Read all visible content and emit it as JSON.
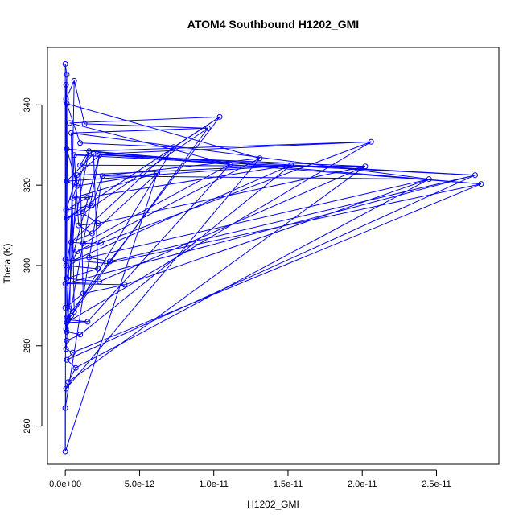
{
  "chart_data": {
    "type": "scatter",
    "title": "ATOM4 Southbound H1202_GMI",
    "xlabel": "H1202_GMI",
    "ylabel": "Theta (K)",
    "xlim": [
      -1.2e-12,
      2.92e-11
    ],
    "ylim": [
      250.5,
      354.3
    ],
    "x_ticks": [
      0,
      5e-12,
      1e-11,
      1.5e-11,
      2e-11,
      2.5e-11
    ],
    "x_tick_labels": [
      "0.0e+00",
      "5.0e-12",
      "1.0e-11",
      "1.5e-11",
      "2.0e-11",
      "2.5e-11"
    ],
    "y_ticks": [
      260,
      280,
      300,
      320,
      340
    ],
    "y_tick_labels": [
      "260",
      "280",
      "300",
      "320",
      "340"
    ],
    "grid": false,
    "legend": "none",
    "series_color": "#0000ff",
    "points": [
      [
        0.0,
        350.2
      ],
      [
        1e-13,
        347.5
      ],
      [
        5e-14,
        345.0
      ],
      [
        6e-13,
        346.0
      ],
      [
        5e-14,
        341.5
      ],
      [
        1e-13,
        340.3
      ],
      [
        3e-13,
        335.5
      ],
      [
        1.3e-12,
        335.3
      ],
      [
        7.3e-12,
        329.5
      ],
      [
        1e-12,
        330.5
      ],
      [
        4e-13,
        333.0
      ],
      [
        1.04e-11,
        337.0
      ],
      [
        9.6e-12,
        334.2
      ],
      [
        1e-13,
        329.0
      ],
      [
        6e-13,
        327.5
      ],
      [
        1.6e-12,
        328.5
      ],
      [
        1.9e-12,
        327.8
      ],
      [
        2.3e-12,
        327.5
      ],
      [
        1.31e-11,
        326.7
      ],
      [
        1.11e-11,
        325.2
      ],
      [
        1.52e-11,
        325.0
      ],
      [
        2.02e-11,
        324.7
      ],
      [
        2.06e-11,
        330.8
      ],
      [
        6.2e-12,
        323.0
      ],
      [
        2.5e-12,
        322.3
      ],
      [
        1e-12,
        325.0
      ],
      [
        8e-13,
        322.5
      ],
      [
        2.45e-11,
        321.5
      ],
      [
        2.76e-11,
        322.5
      ],
      [
        2.8e-11,
        320.3
      ],
      [
        1e-13,
        321.0
      ],
      [
        8e-13,
        319.8
      ],
      [
        5e-13,
        316.8
      ],
      [
        1.5e-12,
        317.0
      ],
      [
        5e-14,
        313.8
      ],
      [
        1.8e-12,
        315.0
      ],
      [
        1e-13,
        311.8
      ],
      [
        1.2e-12,
        313.0
      ],
      [
        2.2e-12,
        310.5
      ],
      [
        9e-13,
        310.0
      ],
      [
        1.8e-12,
        308.0
      ],
      [
        4e-13,
        305.8
      ],
      [
        1.2e-12,
        305.5
      ],
      [
        2.4e-12,
        305.6
      ],
      [
        8e-13,
        303.5
      ],
      [
        5e-13,
        301.2
      ],
      [
        1.6e-12,
        302.0
      ],
      [
        3e-12,
        301.0
      ],
      [
        2.8e-12,
        300.5
      ],
      [
        0.0,
        301.5
      ],
      [
        5e-14,
        300.0
      ],
      [
        2.2e-12,
        299.2
      ],
      [
        1e-13,
        296.8
      ],
      [
        2.3e-12,
        296.0
      ],
      [
        0.0,
        295.5
      ],
      [
        4e-12,
        295.2
      ],
      [
        1.2e-12,
        293.0
      ],
      [
        0.0,
        289.5
      ],
      [
        3e-13,
        289.2
      ],
      [
        6e-13,
        288.5
      ],
      [
        4e-13,
        287.5
      ],
      [
        1e-13,
        287.0
      ],
      [
        2e-13,
        286.5
      ],
      [
        1.5e-12,
        286.0
      ],
      [
        1e-13,
        285.8
      ],
      [
        5e-14,
        284.2
      ],
      [
        1e-13,
        283.5
      ],
      [
        1e-12,
        282.8
      ],
      [
        1e-13,
        281.3
      ],
      [
        5e-14,
        279.2
      ],
      [
        5e-13,
        278.3
      ],
      [
        1e-13,
        276.5
      ],
      [
        7e-13,
        274.5
      ],
      [
        2e-13,
        271.0
      ],
      [
        5e-14,
        269.3
      ],
      [
        0.0,
        264.5
      ],
      [
        0.0,
        253.7
      ]
    ],
    "segments": [
      [
        0,
        1
      ],
      [
        1,
        4
      ],
      [
        4,
        3
      ],
      [
        3,
        7
      ],
      [
        7,
        12
      ],
      [
        12,
        10
      ],
      [
        10,
        27
      ],
      [
        27,
        24
      ],
      [
        24,
        18
      ],
      [
        18,
        5
      ],
      [
        5,
        9
      ],
      [
        9,
        8
      ],
      [
        8,
        11
      ],
      [
        11,
        6
      ],
      [
        6,
        19
      ],
      [
        19,
        13
      ],
      [
        13,
        29
      ],
      [
        29,
        16
      ],
      [
        16,
        28
      ],
      [
        28,
        14
      ],
      [
        14,
        22
      ],
      [
        22,
        15
      ],
      [
        15,
        25
      ],
      [
        25,
        21
      ],
      [
        21,
        17
      ],
      [
        17,
        26
      ],
      [
        26,
        20
      ],
      [
        20,
        30
      ],
      [
        30,
        31
      ],
      [
        31,
        23
      ],
      [
        23,
        32
      ],
      [
        32,
        33
      ],
      [
        33,
        34
      ],
      [
        34,
        35
      ],
      [
        35,
        36
      ],
      [
        36,
        37
      ],
      [
        37,
        38
      ],
      [
        38,
        39
      ],
      [
        39,
        40
      ],
      [
        40,
        41
      ],
      [
        41,
        42
      ],
      [
        42,
        43
      ],
      [
        43,
        44
      ],
      [
        44,
        45
      ],
      [
        45,
        46
      ],
      [
        46,
        47
      ],
      [
        47,
        48
      ],
      [
        48,
        49
      ],
      [
        49,
        50
      ],
      [
        50,
        51
      ],
      [
        51,
        52
      ],
      [
        52,
        53
      ],
      [
        53,
        54
      ],
      [
        54,
        55
      ],
      [
        55,
        56
      ],
      [
        56,
        57
      ],
      [
        57,
        58
      ],
      [
        58,
        59
      ],
      [
        59,
        60
      ],
      [
        60,
        61
      ],
      [
        61,
        62
      ],
      [
        62,
        63
      ],
      [
        63,
        64
      ],
      [
        64,
        65
      ],
      [
        65,
        66
      ],
      [
        66,
        67
      ],
      [
        67,
        68
      ],
      [
        68,
        69
      ],
      [
        69,
        70
      ],
      [
        70,
        71
      ],
      [
        71,
        72
      ],
      [
        72,
        73
      ],
      [
        73,
        74
      ],
      [
        74,
        75
      ],
      [
        75,
        76
      ],
      [
        76,
        23
      ],
      [
        75,
        24
      ],
      [
        74,
        18
      ],
      [
        73,
        21
      ],
      [
        72,
        27
      ],
      [
        71,
        28
      ],
      [
        70,
        29
      ],
      [
        69,
        26
      ],
      [
        67,
        20
      ],
      [
        66,
        17
      ],
      [
        65,
        14
      ],
      [
        64,
        22
      ],
      [
        63,
        19
      ],
      [
        62,
        12
      ],
      [
        61,
        11
      ],
      [
        60,
        8
      ],
      [
        59,
        10
      ],
      [
        58,
        3
      ],
      [
        57,
        0
      ],
      [
        56,
        25
      ],
      [
        55,
        27
      ],
      [
        54,
        28
      ],
      [
        53,
        21
      ],
      [
        52,
        17
      ],
      [
        51,
        16
      ],
      [
        50,
        15
      ],
      [
        49,
        2
      ],
      [
        48,
        29
      ],
      [
        47,
        28
      ],
      [
        46,
        27
      ],
      [
        45,
        20
      ],
      [
        44,
        18
      ],
      [
        43,
        22
      ],
      [
        42,
        19
      ],
      [
        41,
        8
      ],
      [
        40,
        23
      ],
      [
        39,
        14
      ],
      [
        38,
        21
      ],
      [
        37,
        12
      ],
      [
        36,
        11
      ],
      [
        35,
        24
      ],
      [
        34,
        26
      ],
      [
        33,
        20
      ],
      [
        32,
        15
      ],
      [
        31,
        13
      ],
      [
        30,
        16
      ],
      [
        1,
        57
      ],
      [
        2,
        76
      ],
      [
        4,
        68
      ],
      [
        5,
        62
      ]
    ]
  }
}
